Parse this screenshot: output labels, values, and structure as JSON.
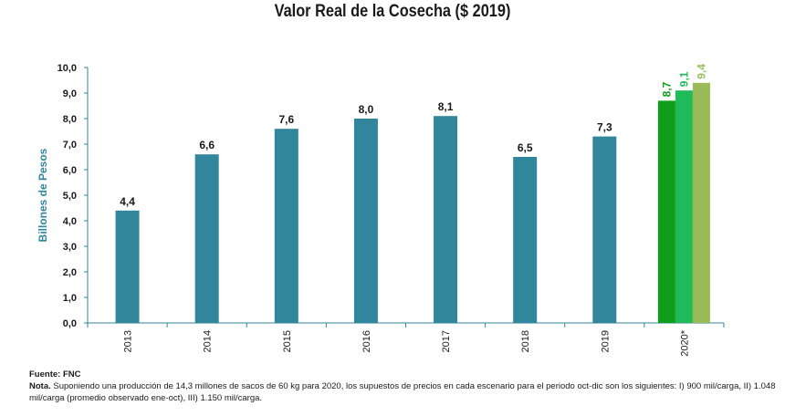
{
  "chart_data": {
    "type": "bar",
    "title": "Valor Real de la Cosecha ($ 2019)",
    "ylabel": "Billones de Pesos",
    "xlabel": "",
    "ylim": [
      0,
      10
    ],
    "ytick_step": 1,
    "yticks": [
      "0,0",
      "1,0",
      "2,0",
      "3,0",
      "4,0",
      "5,0",
      "6,0",
      "7,0",
      "8,0",
      "9,0",
      "10,0"
    ],
    "grid": false,
    "decimal_separator": ",",
    "categories": [
      "2013",
      "2014",
      "2015",
      "2016",
      "2017",
      "2018",
      "2019",
      "2020*"
    ],
    "historical": {
      "color": "#31869b",
      "values": [
        4.4,
        6.6,
        7.6,
        8.0,
        8.1,
        6.5,
        7.3
      ],
      "labels": [
        "4,4",
        "6,6",
        "7,6",
        "8,0",
        "8,1",
        "6,5",
        "7,3"
      ]
    },
    "scenarios": {
      "category": "2020*",
      "values": [
        8.7,
        9.1,
        9.4
      ],
      "labels": [
        "8,7",
        "9,1",
        "9,4"
      ],
      "colors": [
        "#0f9d1a",
        "#1fba5a",
        "#9bbb59"
      ]
    },
    "axis_color": "#31869b",
    "axis_text_color": "#1a1a1a"
  },
  "notes": {
    "source_label": "Fuente: FNC",
    "note_prefix": "Nota.",
    "note_text": " Suponiendo una producción de 14,3 millones de sacos de 60 kg para 2020, los supuestos de precios en cada escenario para el periodo oct-dic son los siguientes: I) 900 mil/carga, II) 1.048 mil/carga (promedio observado ene-oct), III) 1.150 mil/carga."
  }
}
